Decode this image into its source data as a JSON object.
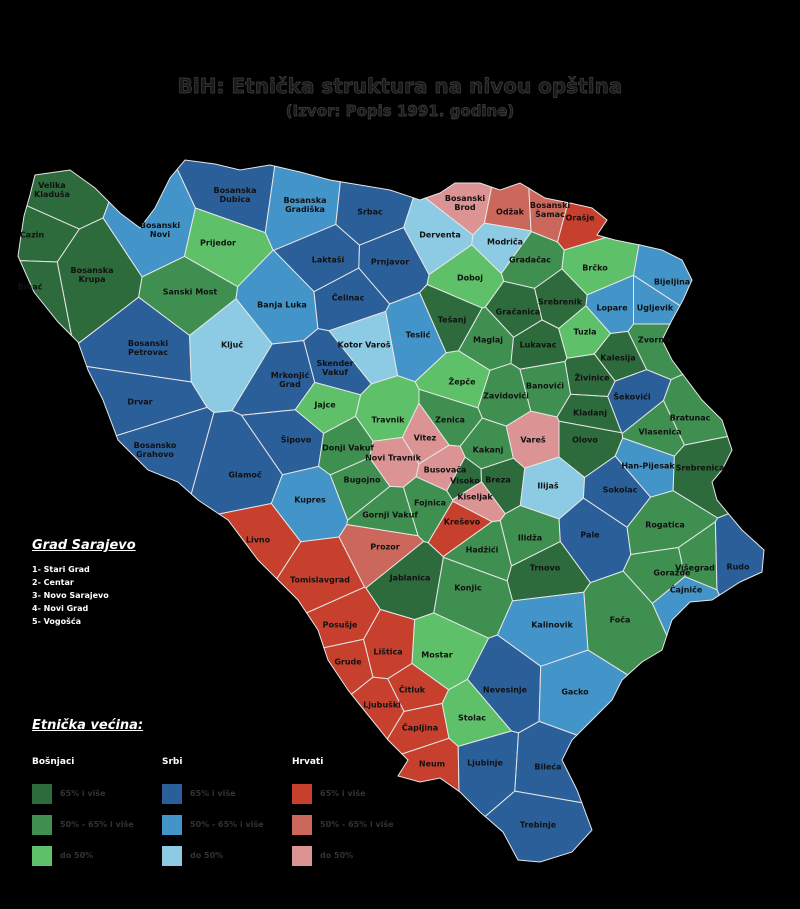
{
  "title": "BiH: Etnička struktura na nivou opština",
  "subtitle": "(Izvor: Popis 1991. godine)",
  "municipalities": [
    {
      "name": "Velika Kladuša",
      "color": "#2e6b3c"
    },
    {
      "name": "Cazin",
      "color": "#2e6b3c"
    },
    {
      "name": "Bihać",
      "color": "#2e6b3c"
    },
    {
      "name": "Bosanska Krupa",
      "color": "#2e6b3c"
    },
    {
      "name": "Bosanski Novi",
      "color": "#4394c8"
    },
    {
      "name": "Bosanska Dubica",
      "color": "#2b5f99"
    },
    {
      "name": "Bosanska Gradiška",
      "color": "#4394c8"
    },
    {
      "name": "Srbac",
      "color": "#2b5f99"
    },
    {
      "name": "Prijedor",
      "color": "#5ec16a"
    },
    {
      "name": "Sanski Most",
      "color": "#3f9050"
    },
    {
      "name": "Laktaši",
      "color": "#2b5f99"
    },
    {
      "name": "Prnjavor",
      "color": "#2b5f99"
    },
    {
      "name": "Derventa",
      "color": "#8dcbe4"
    },
    {
      "name": "Bosanski Brod",
      "color": "#db9393"
    },
    {
      "name": "Odžak",
      "color": "#cc675c"
    },
    {
      "name": "Bosanski Šamac",
      "color": "#cc675c"
    },
    {
      "name": "Orašje",
      "color": "#c7402d"
    },
    {
      "name": "Modriča",
      "color": "#8dcbe4"
    },
    {
      "name": "Gradačac",
      "color": "#3f9050"
    },
    {
      "name": "Brčko",
      "color": "#5ec16a"
    },
    {
      "name": "Bijeljina",
      "color": "#4394c8"
    },
    {
      "name": "Doboj",
      "color": "#5ec16a"
    },
    {
      "name": "Banja Luka",
      "color": "#4394c8"
    },
    {
      "name": "Čelinac",
      "color": "#2b5f99"
    },
    {
      "name": "Bosanski Petrovac",
      "color": "#2b5f99"
    },
    {
      "name": "Ključ",
      "color": "#8dcbe4"
    },
    {
      "name": "Kotor Varoš",
      "color": "#8dcbe4"
    },
    {
      "name": "Teslić",
      "color": "#4394c8"
    },
    {
      "name": "Tešanj",
      "color": "#2e6b3c"
    },
    {
      "name": "Gračanica",
      "color": "#2e6b3c"
    },
    {
      "name": "Srebrenik",
      "color": "#2e6b3c"
    },
    {
      "name": "Lopare",
      "color": "#4394c8"
    },
    {
      "name": "Ugljevik",
      "color": "#4394c8"
    },
    {
      "name": "Maglaj",
      "color": "#3f9050"
    },
    {
      "name": "Lukavac",
      "color": "#2e6b3c"
    },
    {
      "name": "Tuzla",
      "color": "#5ec16a"
    },
    {
      "name": "Zvornik",
      "color": "#3f9050"
    },
    {
      "name": "Kalesija",
      "color": "#2e6b3c"
    },
    {
      "name": "Skender Vakuf",
      "color": "#2b5f99"
    },
    {
      "name": "Mrkonjić Grad",
      "color": "#2b5f99"
    },
    {
      "name": "Drvar",
      "color": "#2b5f99"
    },
    {
      "name": "Žepče",
      "color": "#5ec16a"
    },
    {
      "name": "Banovići",
      "color": "#3f9050"
    },
    {
      "name": "Živinice",
      "color": "#2e6b3c"
    },
    {
      "name": "Zavidovići",
      "color": "#3f9050"
    },
    {
      "name": "Šekovići",
      "color": "#2b5f99"
    },
    {
      "name": "Jajce",
      "color": "#5ec16a"
    },
    {
      "name": "Travnik",
      "color": "#5ec16a"
    },
    {
      "name": "Zenica",
      "color": "#3f9050"
    },
    {
      "name": "Kladanj",
      "color": "#2e6b3c"
    },
    {
      "name": "Bratunac",
      "color": "#3f9050"
    },
    {
      "name": "Bosansko Grahovo",
      "color": "#2b5f99"
    },
    {
      "name": "Šipovo",
      "color": "#2b5f99"
    },
    {
      "name": "Donji Vakuf",
      "color": "#3f9050"
    },
    {
      "name": "Novi Travnik",
      "color": "#db9393"
    },
    {
      "name": "Vitez",
      "color": "#db9393"
    },
    {
      "name": "Kakanj",
      "color": "#3f9050"
    },
    {
      "name": "Vareš",
      "color": "#db9393"
    },
    {
      "name": "Olovo",
      "color": "#2e6b3c"
    },
    {
      "name": "Vlasenica",
      "color": "#3f9050"
    },
    {
      "name": "Han-Pijesak",
      "color": "#4394c8"
    },
    {
      "name": "Busovača",
      "color": "#db9393"
    },
    {
      "name": "Srebrenica",
      "color": "#2e6b3c"
    },
    {
      "name": "Visoko",
      "color": "#2e6b3c"
    },
    {
      "name": "Breza",
      "color": "#2e6b3c"
    },
    {
      "name": "Ilijaš",
      "color": "#8dcbe4"
    },
    {
      "name": "Glamoč",
      "color": "#2b5f99"
    },
    {
      "name": "Bugojno",
      "color": "#3f9050"
    },
    {
      "name": "Kiseljak",
      "color": "#db9393"
    },
    {
      "name": "Fojnica",
      "color": "#3f9050"
    },
    {
      "name": "Sokolac",
      "color": "#2b5f99"
    },
    {
      "name": "Kupres",
      "color": "#4394c8"
    },
    {
      "name": "Gornji Vakuf",
      "color": "#3f9050"
    },
    {
      "name": "Kreševo",
      "color": "#c7402d"
    },
    {
      "name": "Hadžići",
      "color": "#3f9050"
    },
    {
      "name": "Ilidža",
      "color": "#3f9050"
    },
    {
      "name": "Pale",
      "color": "#2b5f99"
    },
    {
      "name": "Rogatica",
      "color": "#3f9050"
    },
    {
      "name": "Višegrad",
      "color": "#3f9050"
    },
    {
      "name": "Livno",
      "color": "#c7402d"
    },
    {
      "name": "Prozor",
      "color": "#cc675c"
    },
    {
      "name": "Trnovo",
      "color": "#2e6b3c"
    },
    {
      "name": "Goražde",
      "color": "#3f9050"
    },
    {
      "name": "Rudo",
      "color": "#2b5f99"
    },
    {
      "name": "Čajniče",
      "color": "#4394c8"
    },
    {
      "name": "Tomislavgrad",
      "color": "#c7402d"
    },
    {
      "name": "Jablanica",
      "color": "#2e6b3c"
    },
    {
      "name": "Konjic",
      "color": "#3f9050"
    },
    {
      "name": "Foča",
      "color": "#3f9050"
    },
    {
      "name": "Posušje",
      "color": "#c7402d"
    },
    {
      "name": "Kalinovik",
      "color": "#4394c8"
    },
    {
      "name": "Mostar",
      "color": "#5ec16a"
    },
    {
      "name": "Grude",
      "color": "#c7402d"
    },
    {
      "name": "Lištica",
      "color": "#c7402d"
    },
    {
      "name": "Nevesinje",
      "color": "#2b5f99"
    },
    {
      "name": "Gacko",
      "color": "#4394c8"
    },
    {
      "name": "Čitluk",
      "color": "#c7402d"
    },
    {
      "name": "Ljubuški",
      "color": "#c7402d"
    },
    {
      "name": "Čapljina",
      "color": "#c7402d"
    },
    {
      "name": "Stolac",
      "color": "#5ec16a"
    },
    {
      "name": "Neum",
      "color": "#c7402d"
    },
    {
      "name": "Ljubinje",
      "color": "#2b5f99"
    },
    {
      "name": "Bileća",
      "color": "#2b5f99"
    },
    {
      "name": "Trebinje",
      "color": "#2b5f99"
    }
  ],
  "sarajevo": {
    "title": "Grad Sarajevo",
    "items": [
      "1- Stari Grad",
      "2- Centar",
      "3- Novo Sarajevo",
      "4- Novi Grad",
      "5- Vogošća"
    ]
  },
  "legend": {
    "title": "Etnička većina:",
    "groups": [
      {
        "name": "Bošnjaci",
        "items": [
          {
            "label": "65% i više",
            "color": "#2e6b3c"
          },
          {
            "label": "50% - 65% i više",
            "color": "#3f9050"
          },
          {
            "label": "do 50%",
            "color": "#5ec16a"
          }
        ]
      },
      {
        "name": "Srbi",
        "items": [
          {
            "label": "65% i više",
            "color": "#2b5f99"
          },
          {
            "label": "50% - 65% i više",
            "color": "#4394c8"
          },
          {
            "label": "do 50%",
            "color": "#8dcbe4"
          }
        ]
      },
      {
        "name": "Hrvati",
        "items": [
          {
            "label": "65% i više",
            "color": "#c7402d"
          },
          {
            "label": "50% - 65% i više",
            "color": "#cc675c"
          },
          {
            "label": "do 50%",
            "color": "#db9393"
          }
        ]
      }
    ]
  }
}
